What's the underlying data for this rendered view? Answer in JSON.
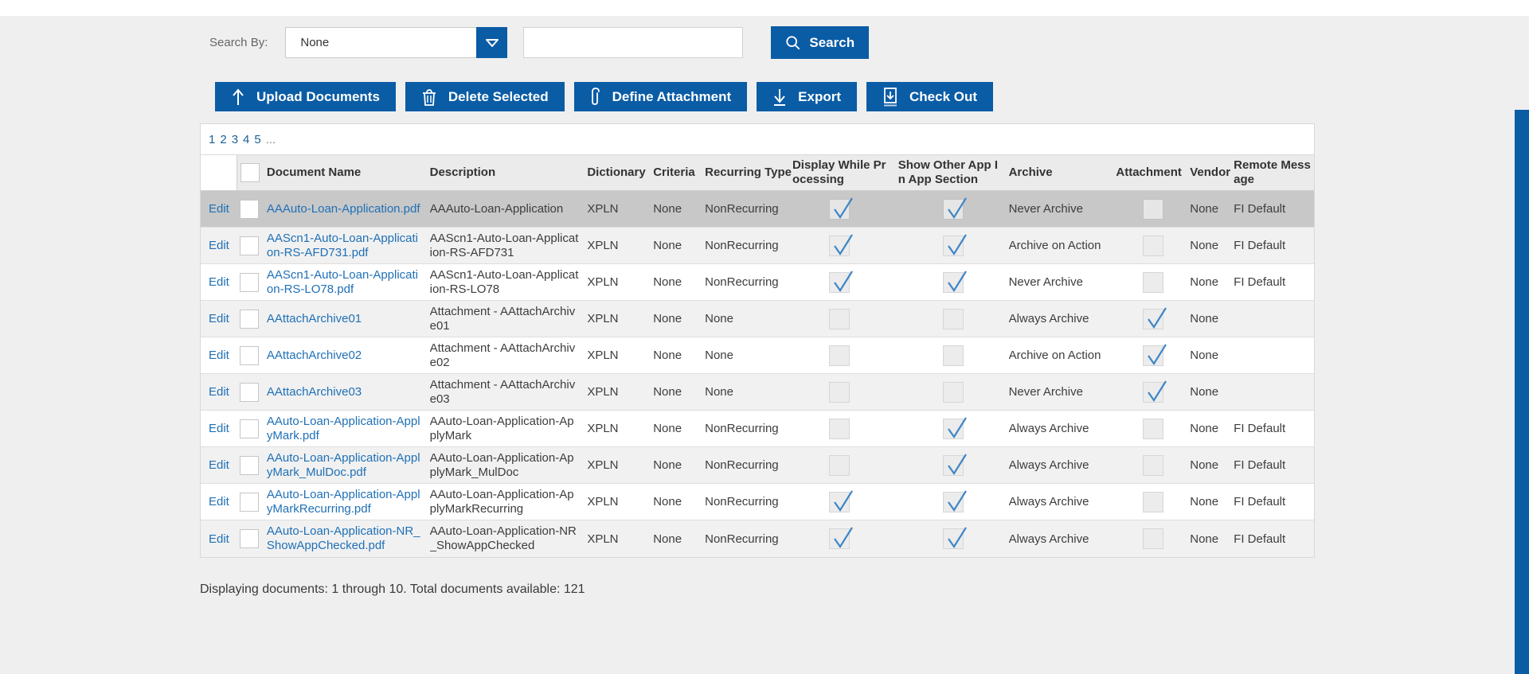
{
  "search_bar": {
    "label": "Search By:",
    "dropdown_value": "None",
    "input_value": "",
    "button_label": "Search"
  },
  "toolbar": {
    "buttons": [
      {
        "icon": "upload-icon",
        "label": "Upload Documents"
      },
      {
        "icon": "trash-icon",
        "label": "Delete Selected"
      },
      {
        "icon": "paperclip-icon",
        "label": "Define Attachment"
      },
      {
        "icon": "export-icon",
        "label": "Export"
      },
      {
        "icon": "checkout-icon",
        "label": "Check Out"
      }
    ]
  },
  "pagination": {
    "pages": [
      "1",
      "2",
      "3",
      "4",
      "5"
    ],
    "ellipsis": "..."
  },
  "table": {
    "edit_label": "Edit",
    "headers": [
      "",
      "",
      "Document Name",
      "Description",
      "Dictionary",
      "Criteria",
      "Recurring Type",
      "Display While Processing",
      "Show Other App In App Section",
      "Archive",
      "Attachment",
      "Vendor",
      "Remote Message"
    ],
    "rows": [
      {
        "name": "AAAuto-Loan-Application.pdf",
        "description": "AAAuto-Loan-Application",
        "dictionary": "XPLN",
        "criteria": "None",
        "recurring_type": "NonRecurring",
        "display_while_processing": true,
        "show_other_app": true,
        "archive": "Never Archive",
        "attachment": false,
        "vendor": "None",
        "remote_message": "FI Default",
        "selected": true
      },
      {
        "name": "AAScn1-Auto-Loan-Application-RS-AFD731.pdf",
        "description": "AAScn1-Auto-Loan-Application-RS-AFD731",
        "dictionary": "XPLN",
        "criteria": "None",
        "recurring_type": "NonRecurring",
        "display_while_processing": true,
        "show_other_app": true,
        "archive": "Archive on Action",
        "attachment": false,
        "vendor": "None",
        "remote_message": "FI Default",
        "selected": false
      },
      {
        "name": "AAScn1-Auto-Loan-Application-RS-LO78.pdf",
        "description": "AAScn1-Auto-Loan-Application-RS-LO78",
        "dictionary": "XPLN",
        "criteria": "None",
        "recurring_type": "NonRecurring",
        "display_while_processing": true,
        "show_other_app": true,
        "archive": "Never Archive",
        "attachment": false,
        "vendor": "None",
        "remote_message": "FI Default",
        "selected": false
      },
      {
        "name": "AAttachArchive01",
        "description": "Attachment - AAttachArchive01",
        "dictionary": "XPLN",
        "criteria": "None",
        "recurring_type": "None",
        "display_while_processing": false,
        "show_other_app": false,
        "archive": "Always Archive",
        "attachment": true,
        "vendor": "None",
        "remote_message": "",
        "selected": false
      },
      {
        "name": "AAttachArchive02",
        "description": "Attachment - AAttachArchive02",
        "dictionary": "XPLN",
        "criteria": "None",
        "recurring_type": "None",
        "display_while_processing": false,
        "show_other_app": false,
        "archive": "Archive on Action",
        "attachment": true,
        "vendor": "None",
        "remote_message": "",
        "selected": false
      },
      {
        "name": "AAttachArchive03",
        "description": "Attachment - AAttachArchive03",
        "dictionary": "XPLN",
        "criteria": "None",
        "recurring_type": "None",
        "display_while_processing": false,
        "show_other_app": false,
        "archive": "Never Archive",
        "attachment": true,
        "vendor": "None",
        "remote_message": "",
        "selected": false
      },
      {
        "name": "AAuto-Loan-Application-ApplyMark.pdf",
        "description": "AAuto-Loan-Application-ApplyMark",
        "dictionary": "XPLN",
        "criteria": "None",
        "recurring_type": "NonRecurring",
        "display_while_processing": false,
        "show_other_app": true,
        "archive": "Always Archive",
        "attachment": false,
        "vendor": "None",
        "remote_message": "FI Default",
        "selected": false
      },
      {
        "name": "AAuto-Loan-Application-ApplyMark_MulDoc.pdf",
        "description": "AAuto-Loan-Application-ApplyMark_MulDoc",
        "dictionary": "XPLN",
        "criteria": "None",
        "recurring_type": "NonRecurring",
        "display_while_processing": false,
        "show_other_app": true,
        "archive": "Always Archive",
        "attachment": false,
        "vendor": "None",
        "remote_message": "FI Default",
        "selected": false
      },
      {
        "name": "AAuto-Loan-Application-ApplyMarkRecurring.pdf",
        "description": "AAuto-Loan-Application-ApplyMarkRecurring",
        "dictionary": "XPLN",
        "criteria": "None",
        "recurring_type": "NonRecurring",
        "display_while_processing": true,
        "show_other_app": true,
        "archive": "Always Archive",
        "attachment": false,
        "vendor": "None",
        "remote_message": "FI Default",
        "selected": false
      },
      {
        "name": "AAuto-Loan-Application-NR_ShowAppChecked.pdf",
        "description": "AAuto-Loan-Application-NR_ShowAppChecked",
        "dictionary": "XPLN",
        "criteria": "None",
        "recurring_type": "NonRecurring",
        "display_while_processing": true,
        "show_other_app": true,
        "archive": "Always Archive",
        "attachment": false,
        "vendor": "None",
        "remote_message": "FI Default",
        "selected": false
      }
    ]
  },
  "footer": {
    "summary": "Displaying documents: 1 through 10. Total documents available: 121"
  },
  "colors": {
    "accent_blue": "#0a5ca5",
    "link_blue": "#1f70b6",
    "selected_row": "#c8c8c8",
    "check_blue": "#3e86c6"
  }
}
